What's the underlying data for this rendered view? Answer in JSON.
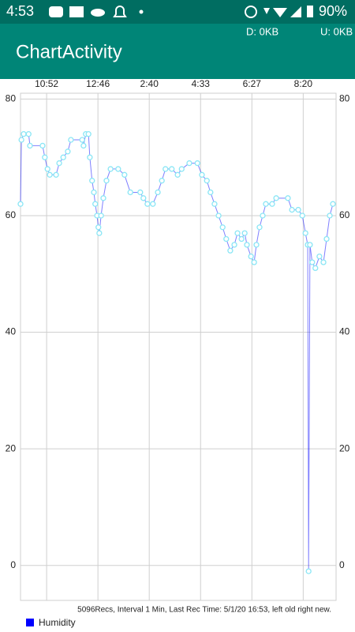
{
  "status_bar": {
    "time": "4:53",
    "battery": "90%"
  },
  "app_bar": {
    "title": "ChartActivity",
    "download": "D: 0KB",
    "upload": "U: 0KB"
  },
  "chart_data": {
    "type": "line",
    "footer": "5096Recs, Interval 1 Min, Last Rec Time: 5/1/20 16:53, left old right new.",
    "x": [
      0,
      2,
      7,
      18,
      21,
      49,
      54,
      60,
      65,
      79,
      86,
      95,
      105,
      112,
      137,
      140,
      145,
      151,
      154,
      159,
      163,
      166,
      170,
      173,
      175,
      179,
      184,
      191,
      200,
      217,
      231,
      244,
      266,
      273,
      282,
      294,
      305,
      314,
      322,
      336,
      349,
      358,
      375,
      393,
      403,
      414,
      422,
      431,
      440,
      449,
      457,
      466,
      475,
      482,
      491,
      498,
      503,
      512,
      519,
      524,
      531,
      538,
      545,
      559,
      568,
      594,
      603,
      617,
      626,
      633,
      638,
      640,
      643,
      648,
      655,
      664,
      673,
      680,
      687,
      694
    ],
    "series": [
      {
        "name": "Humidity",
        "color": "#0000ff",
        "point_color": "#8ae6f5",
        "values": [
          62,
          73,
          74,
          74,
          72,
          72,
          70,
          68,
          67,
          67,
          69,
          70,
          71,
          73,
          73,
          72,
          74,
          74,
          70,
          66,
          64,
          62,
          60,
          58,
          57,
          60,
          63,
          66,
          68,
          68,
          67,
          64,
          64,
          63,
          62,
          62,
          64,
          66,
          68,
          68,
          67,
          68,
          69,
          69,
          67,
          66,
          64,
          62,
          60,
          58,
          56,
          54,
          55,
          57,
          56,
          57,
          55,
          53,
          52,
          55,
          58,
          60,
          62,
          62,
          63,
          63,
          61,
          61,
          60,
          57,
          55,
          -1,
          55,
          52,
          51,
          53,
          52,
          56,
          60,
          62
        ]
      }
    ],
    "xlim": [
      0,
      701
    ],
    "xticks": [
      {
        "value": 58,
        "label": "10:52"
      },
      {
        "value": 172,
        "label": "12:46"
      },
      {
        "value": 286,
        "label": "2:40"
      },
      {
        "value": 400,
        "label": "4:33"
      },
      {
        "value": 514,
        "label": "6:27"
      },
      {
        "value": 628,
        "label": "8:20"
      }
    ],
    "ylim": [
      -6,
      81
    ],
    "yticks": [
      0,
      20,
      40,
      60,
      80
    ],
    "y2lim": [
      -6,
      81
    ],
    "y2ticks": [
      0,
      20,
      40,
      60,
      80
    ],
    "grid": true
  }
}
